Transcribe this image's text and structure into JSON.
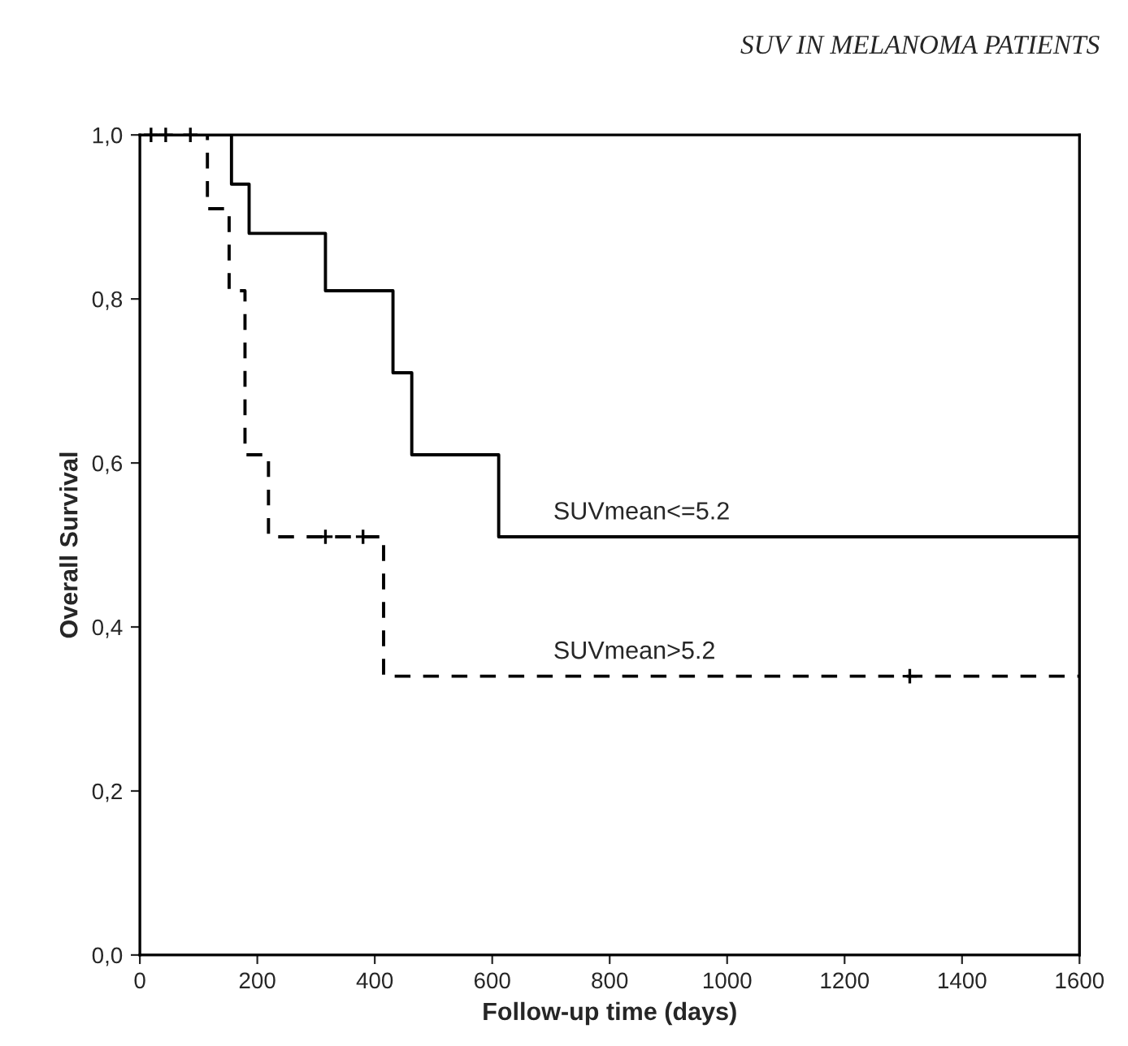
{
  "chart_data": {
    "type": "step",
    "title": "SUV IN MELANOMA PATIENTS",
    "xlabel": "Follow-up time (days)",
    "ylabel": "Overall Survival",
    "series": [
      {
        "name": "SUVmean<=5.2",
        "color": "#000000",
        "line_style": "solid",
        "x": [
          0,
          156,
          186,
          316,
          431,
          463,
          611,
          1600
        ],
        "values": [
          1.0,
          0.94,
          0.88,
          0.81,
          0.71,
          0.61,
          0.51,
          0.51
        ]
      },
      {
        "name": "SUVmean>5.2",
        "color": "#000000",
        "line_style": "dashed",
        "x": [
          0,
          115,
          152,
          179,
          219,
          415,
          1600
        ],
        "values": [
          1.0,
          0.91,
          0.81,
          0.61,
          0.51,
          0.34,
          0.34
        ]
      },
      {
        "type": "scatter",
        "color": "#000000",
        "marker": "cross",
        "x": [
          19,
          44,
          86,
          316,
          380,
          1311
        ],
        "values": [
          1.0,
          1.0,
          1.0,
          0.51,
          0.51,
          0.34
        ]
      }
    ],
    "xlim": [
      0,
      1600
    ],
    "xticks": [
      0,
      200,
      400,
      600,
      800,
      1000,
      1200,
      1400,
      1600
    ],
    "ylim": [
      0,
      1.0
    ],
    "yticks": [
      {
        "value": 0,
        "label": "0,0"
      },
      {
        "value": 0.2,
        "label": "0,2"
      },
      {
        "value": 0.4,
        "label": "0,4"
      },
      {
        "value": 0.6,
        "label": "0,6"
      },
      {
        "value": 0.8,
        "label": "0,8"
      },
      {
        "value": 1.0,
        "label": "1,0"
      }
    ],
    "grid": false,
    "legend": false
  }
}
